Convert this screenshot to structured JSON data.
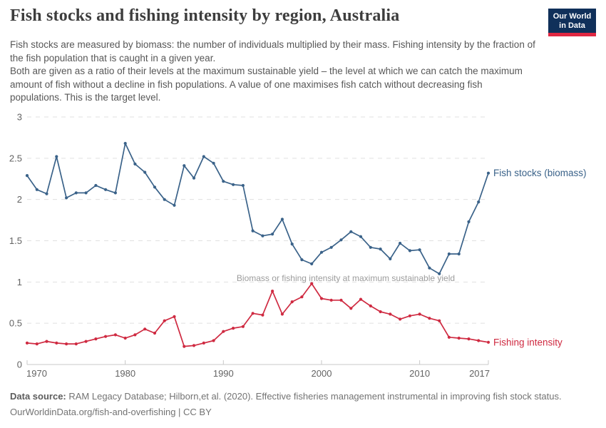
{
  "header": {
    "title": "Fish stocks and fishing intensity by region, Australia",
    "logo": {
      "line1": "Our World",
      "line2": "in Data"
    }
  },
  "subtitle": {
    "p1": "Fish stocks are measured by biomass: the number of individuals multiplied by their mass. Fishing intensity by the fraction of the fish population that is caught in a given year.",
    "p2": "Both are given as a ratio of their levels at the maximum sustainable yield – the level at which we can catch the maximum amount of fish without a decline in fish populations. A value of one maximises fish catch without decreasing fish populations. This is the target level."
  },
  "chart_data": {
    "type": "line",
    "title": "Fish stocks and fishing intensity by region, Australia",
    "years": [
      1970,
      1971,
      1972,
      1973,
      1974,
      1975,
      1976,
      1977,
      1978,
      1979,
      1980,
      1981,
      1982,
      1983,
      1984,
      1985,
      1986,
      1987,
      1988,
      1989,
      1990,
      1991,
      1992,
      1993,
      1994,
      1995,
      1996,
      1997,
      1998,
      1999,
      2000,
      2001,
      2002,
      2003,
      2004,
      2005,
      2006,
      2007,
      2008,
      2009,
      2010,
      2011,
      2012,
      2013,
      2014,
      2015,
      2016,
      2017
    ],
    "series": [
      {
        "name": "Fish stocks (biomass)",
        "color": "#3A6289",
        "values": [
          2.29,
          2.12,
          2.07,
          2.52,
          2.02,
          2.08,
          2.08,
          2.17,
          2.12,
          2.08,
          2.68,
          2.43,
          2.33,
          2.15,
          2.0,
          1.93,
          2.41,
          2.26,
          2.52,
          2.44,
          2.22,
          2.18,
          2.17,
          1.62,
          1.56,
          1.58,
          1.76,
          1.46,
          1.27,
          1.22,
          1.36,
          1.42,
          1.51,
          1.61,
          1.55,
          1.42,
          1.4,
          1.28,
          1.47,
          1.38,
          1.39,
          1.17,
          1.1,
          1.34,
          1.34,
          1.73,
          1.97,
          2.32
        ]
      },
      {
        "name": "Fishing intensity",
        "color": "#CF2A41",
        "values": [
          0.26,
          0.25,
          0.28,
          0.26,
          0.25,
          0.25,
          0.28,
          0.31,
          0.34,
          0.36,
          0.32,
          0.36,
          0.43,
          0.38,
          0.53,
          0.58,
          0.22,
          0.23,
          0.26,
          0.29,
          0.4,
          0.44,
          0.46,
          0.62,
          0.6,
          0.89,
          0.61,
          0.76,
          0.82,
          0.98,
          0.8,
          0.78,
          0.78,
          0.68,
          0.79,
          0.71,
          0.64,
          0.61,
          0.55,
          0.59,
          0.61,
          0.56,
          0.53,
          0.33,
          0.32,
          0.31,
          0.29,
          0.27
        ]
      }
    ],
    "xlabel": "",
    "ylabel": "",
    "ylim": [
      0,
      3
    ],
    "yticks": [
      0,
      0.5,
      1,
      1.5,
      2,
      2.5,
      3
    ],
    "xticks": [
      1970,
      1980,
      1990,
      2000,
      2010,
      2017
    ],
    "grid": true,
    "legend_position": "end-of-line-labels",
    "annotation": "Biomass or fishing intensity at maximum sustainable yield",
    "annotation_value": 1
  },
  "footer": {
    "source_label": "Data source:",
    "source_text": " RAM Legacy Database; Hilborn,et al. (2020). Effective fisheries management instrumental in improving fish stock status.",
    "license": "OurWorldinData.org/fish-and-overfishing | CC BY"
  },
  "colors": {
    "grid": "#e1e1e1",
    "axis": "#c8c8c8",
    "tick_label": "#636363",
    "annotation": "#9c9c9c",
    "background": "#ffffff"
  }
}
